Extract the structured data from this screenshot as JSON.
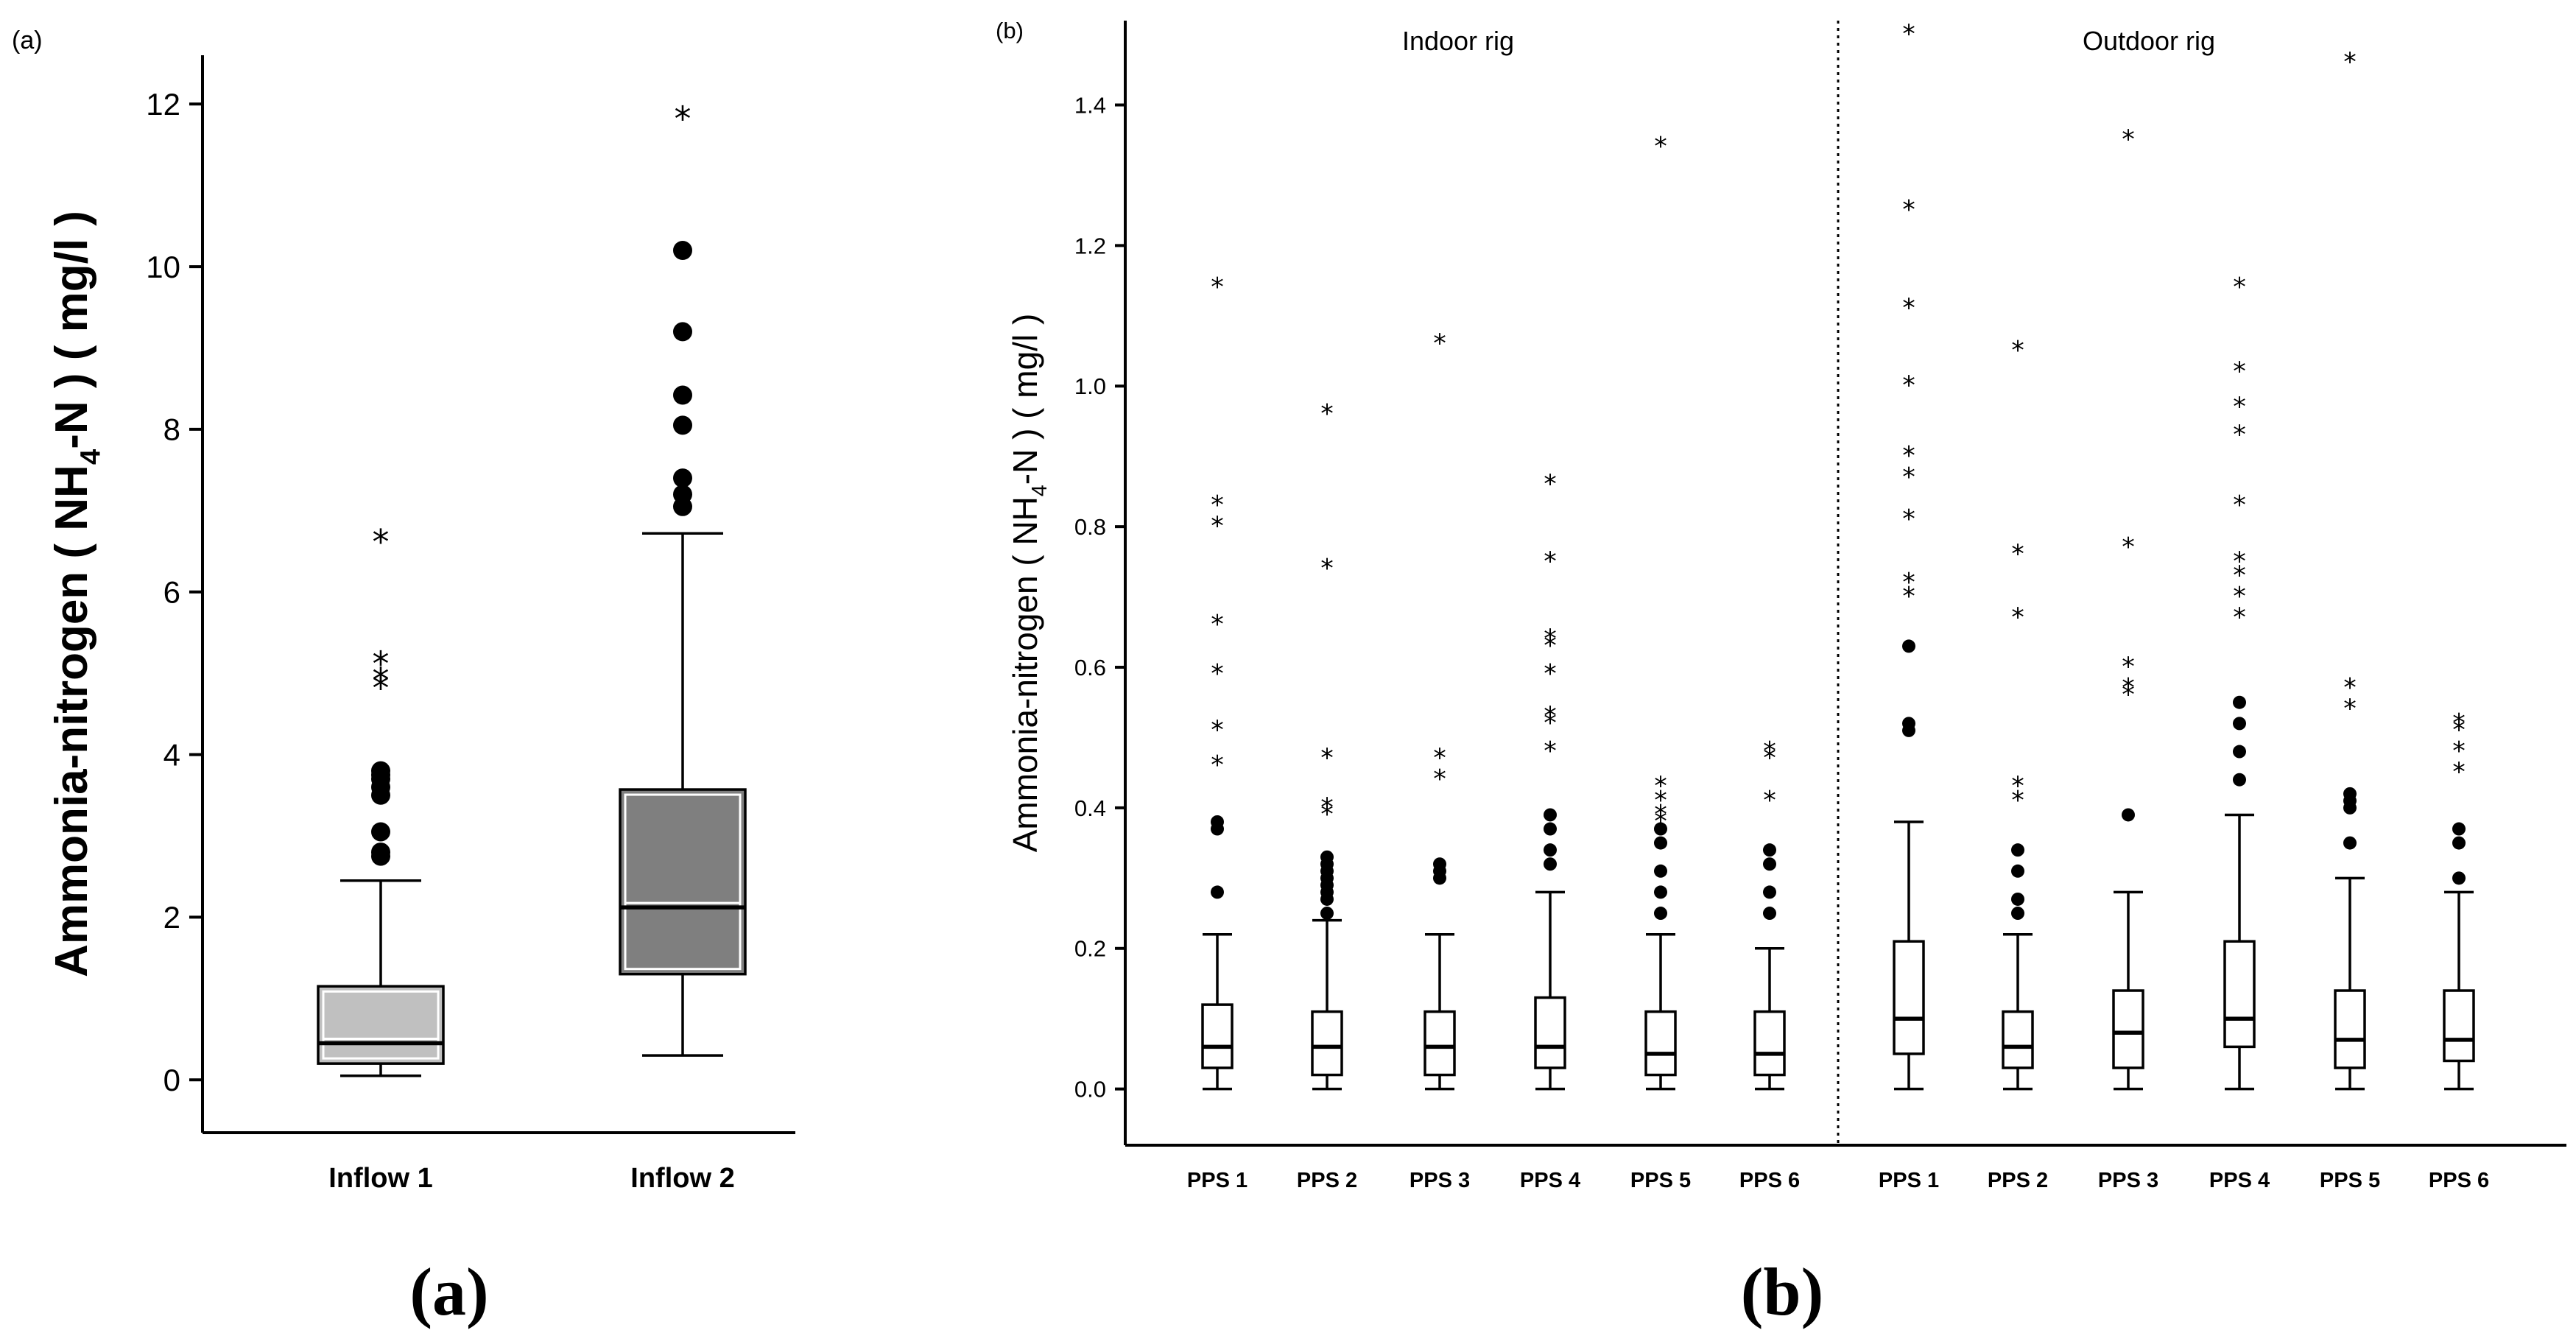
{
  "captions": {
    "a": "(a)",
    "b": "(b)"
  },
  "chart_data": [
    {
      "type": "boxplot",
      "panel_label": "(a)",
      "title": "",
      "xlabel": "",
      "ylabel": "Ammonia-nitrogen ( NH4-N ) ( mg/l )",
      "ylabel_parts": {
        "prefix": "Ammonia-nitrogen ( NH",
        "sub": "4",
        "suffix": "-N ) ( mg/l )"
      },
      "ylim": [
        -0.65,
        12.6
      ],
      "yticks": [
        0,
        2,
        4,
        6,
        8,
        10,
        12
      ],
      "categories": [
        "Inflow 1",
        "Inflow 2"
      ],
      "boxes": [
        {
          "name": "Inflow 1",
          "min": 0.05,
          "q1": 0.2,
          "median": 0.45,
          "q3": 1.15,
          "max": 2.45,
          "outliers": [
            2.75,
            2.8,
            3.05,
            3.5,
            3.6,
            3.7,
            3.75,
            3.8
          ],
          "extremes": [
            4.8,
            4.9,
            5.1,
            6.6
          ],
          "fill": "#c0c0c0"
        },
        {
          "name": "Inflow 2",
          "min": 0.3,
          "q1": 1.3,
          "median": 2.12,
          "q3": 3.57,
          "max": 6.72,
          "outliers": [
            7.05,
            7.2,
            7.4,
            8.05,
            8.42,
            9.2,
            10.2
          ],
          "extremes": [
            11.8
          ],
          "fill": "#7f7f7f"
        }
      ]
    },
    {
      "type": "boxplot",
      "panel_label": "(b)",
      "title": "",
      "xlabel": "",
      "ylabel": "Ammonia-nitrogen ( NH4-N ) ( mg/l )",
      "ylabel_parts": {
        "prefix": "Ammonia-nitrogen ( NH",
        "sub": "4",
        "suffix": "-N ) ( mg/l )"
      },
      "ylim": [
        -0.08,
        1.52
      ],
      "yticks": [
        0.0,
        0.2,
        0.4,
        0.6,
        0.8,
        1.0,
        1.2,
        1.4
      ],
      "ytick_labels": [
        "0.0",
        "0.2",
        "0.4",
        "0.6",
        "0.8",
        "1.0",
        "1.2",
        "1.4"
      ],
      "groups": [
        "Indoor rig",
        "Outdoor rig"
      ],
      "categories": [
        "PPS 1",
        "PPS 2",
        "PPS 3",
        "PPS 4",
        "PPS 5",
        "PPS 6",
        "PPS 1",
        "PPS 2",
        "PPS 3",
        "PPS 4",
        "PPS 5",
        "PPS 6"
      ],
      "boxes": [
        {
          "group": "Indoor rig",
          "name": "PPS 1",
          "min": 0.0,
          "q1": 0.03,
          "median": 0.06,
          "q3": 0.12,
          "max": 0.22,
          "outliers": [
            0.28,
            0.37,
            0.38
          ],
          "extremes": [
            0.46,
            0.51,
            0.59,
            0.66,
            0.8,
            0.83,
            1.14
          ]
        },
        {
          "group": "Indoor rig",
          "name": "PPS 2",
          "min": 0.0,
          "q1": 0.02,
          "median": 0.06,
          "q3": 0.11,
          "max": 0.24,
          "outliers": [
            0.25,
            0.27,
            0.28,
            0.29,
            0.3,
            0.31,
            0.32,
            0.33
          ],
          "extremes": [
            0.39,
            0.4,
            0.47,
            0.74,
            0.96
          ]
        },
        {
          "group": "Indoor rig",
          "name": "PPS 3",
          "min": 0.0,
          "q1": 0.02,
          "median": 0.06,
          "q3": 0.11,
          "max": 0.22,
          "outliers": [
            0.3,
            0.31,
            0.32
          ],
          "extremes": [
            0.44,
            0.47,
            1.06
          ]
        },
        {
          "group": "Indoor rig",
          "name": "PPS 4",
          "min": 0.0,
          "q1": 0.03,
          "median": 0.06,
          "q3": 0.13,
          "max": 0.28,
          "outliers": [
            0.32,
            0.34,
            0.37,
            0.39
          ],
          "extremes": [
            0.48,
            0.52,
            0.53,
            0.59,
            0.63,
            0.64,
            0.75,
            0.86
          ]
        },
        {
          "group": "Indoor rig",
          "name": "PPS 5",
          "min": 0.0,
          "q1": 0.02,
          "median": 0.05,
          "q3": 0.11,
          "max": 0.22,
          "outliers": [
            0.25,
            0.28,
            0.31,
            0.35,
            0.37
          ],
          "extremes": [
            0.38,
            0.39,
            0.41,
            0.43,
            1.34
          ]
        },
        {
          "group": "Indoor rig",
          "name": "PPS 6",
          "min": 0.0,
          "q1": 0.02,
          "median": 0.05,
          "q3": 0.11,
          "max": 0.2,
          "outliers": [
            0.25,
            0.28,
            0.32,
            0.34
          ],
          "extremes": [
            0.41,
            0.47,
            0.48
          ]
        },
        {
          "group": "Outdoor rig",
          "name": "PPS 1",
          "min": 0.0,
          "q1": 0.05,
          "median": 0.1,
          "q3": 0.21,
          "max": 0.38,
          "outliers": [
            0.51,
            0.52,
            0.63
          ],
          "extremes": [
            0.7,
            0.72,
            0.81,
            0.87,
            0.9,
            1.0,
            1.11,
            1.25,
            1.5
          ]
        },
        {
          "group": "Outdoor rig",
          "name": "PPS 2",
          "min": 0.0,
          "q1": 0.03,
          "median": 0.06,
          "q3": 0.11,
          "max": 0.22,
          "outliers": [
            0.25,
            0.27,
            0.31,
            0.34
          ],
          "extremes": [
            0.41,
            0.43,
            0.67,
            0.76,
            1.05
          ]
        },
        {
          "group": "Outdoor rig",
          "name": "PPS 3",
          "min": 0.0,
          "q1": 0.03,
          "median": 0.08,
          "q3": 0.14,
          "max": 0.28,
          "outliers": [
            0.39
          ],
          "extremes": [
            0.56,
            0.57,
            0.6,
            0.77,
            1.35
          ]
        },
        {
          "group": "Outdoor rig",
          "name": "PPS 4",
          "min": 0.0,
          "q1": 0.06,
          "median": 0.1,
          "q3": 0.21,
          "max": 0.39,
          "outliers": [
            0.44,
            0.48,
            0.52,
            0.55
          ],
          "extremes": [
            0.67,
            0.7,
            0.73,
            0.75,
            0.83,
            0.93,
            0.97,
            1.02,
            1.14
          ]
        },
        {
          "group": "Outdoor rig",
          "name": "PPS 5",
          "min": 0.0,
          "q1": 0.03,
          "median": 0.07,
          "q3": 0.14,
          "max": 0.3,
          "outliers": [
            0.35,
            0.4,
            0.41,
            0.42
          ],
          "extremes": [
            0.54,
            0.57,
            1.46
          ]
        },
        {
          "group": "Outdoor rig",
          "name": "PPS 6",
          "min": 0.0,
          "q1": 0.04,
          "median": 0.07,
          "q3": 0.14,
          "max": 0.28,
          "outliers": [
            0.3,
            0.35,
            0.37
          ],
          "extremes": [
            0.45,
            0.48,
            0.51,
            0.52
          ]
        }
      ]
    }
  ]
}
